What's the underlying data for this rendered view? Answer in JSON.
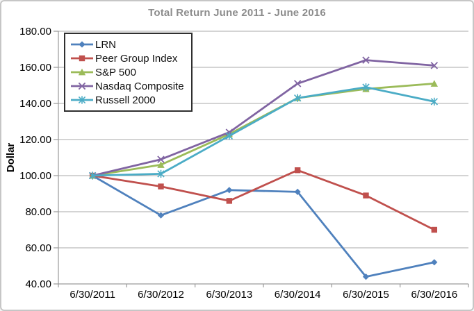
{
  "window": {
    "background": "#ffffff",
    "border_color": "#c6c6c6"
  },
  "chart_data": {
    "type": "line",
    "title": "Total Return June 2011 - June 2016",
    "title_color": "#8c8c8c",
    "xlabel": "",
    "ylabel": "Dollar",
    "categories": [
      "6/30/2011",
      "6/30/2012",
      "6/30/2013",
      "6/30/2014",
      "6/30/2015",
      "6/30/2016"
    ],
    "series": [
      {
        "name": "LRN",
        "marker": "diamond",
        "color": "#4F81BD",
        "values": [
          100,
          78,
          92,
          91,
          44,
          52
        ]
      },
      {
        "name": "Peer Group Index",
        "marker": "square",
        "color": "#C0504D",
        "values": [
          100,
          94,
          86,
          103,
          89,
          70
        ]
      },
      {
        "name": "S&P 500",
        "marker": "triangle",
        "color": "#9BBB59",
        "values": [
          100,
          106,
          123,
          143,
          148,
          151
        ]
      },
      {
        "name": "Nasdaq Composite",
        "marker": "x",
        "color": "#8064A2",
        "values": [
          100,
          109,
          124,
          151,
          164,
          161
        ]
      },
      {
        "name": "Russell 2000",
        "marker": "asterisk",
        "color": "#4BACC6",
        "values": [
          100,
          101,
          122,
          143,
          149,
          141
        ]
      }
    ],
    "ylim": [
      40,
      180
    ],
    "ytick_step": 20,
    "ytick_decimals": 2,
    "grid": true,
    "gridline_color": "#A8A8A8",
    "axis_color": "#9a9a9a",
    "tick_label_color": "#000000",
    "legend_position": "upper-left-inside",
    "legend_border_color": "#2f2f2f"
  }
}
